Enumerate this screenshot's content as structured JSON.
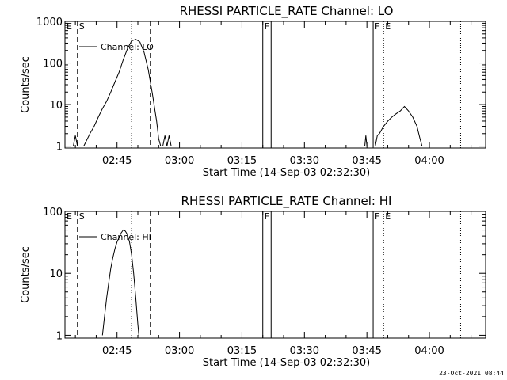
{
  "footer": {
    "date": "23-Oct-2021 08:44"
  },
  "chart_data": [
    {
      "type": "line",
      "title": "RHESSI PARTICLE_RATE Channel: LO",
      "xlabel": "Start Time (14-Sep-03 02:32:30)",
      "ylabel": "Counts/sec",
      "y_scale": "log",
      "ylim": [
        0.9,
        1000
      ],
      "xlim": [
        "02:32:30",
        "04:13:30"
      ],
      "x_ticks": [
        "02:45",
        "03:00",
        "03:15",
        "03:30",
        "03:45",
        "04:00"
      ],
      "y_ticks": [
        "1",
        "10",
        "100",
        "1000"
      ],
      "legend": {
        "label": "Channel: LO",
        "position": "top-left"
      },
      "markers": [
        {
          "time": "02:35:30",
          "label": "S",
          "style": "dashed"
        },
        {
          "time": "02:48:30",
          "label": "",
          "style": "dotted"
        },
        {
          "time": "02:53:00",
          "label": "",
          "style": "dashed"
        },
        {
          "time": "03:20:00",
          "label": "F",
          "style": "solid"
        },
        {
          "time": "03:22:00",
          "label": "",
          "style": "solid"
        },
        {
          "time": "03:46:30",
          "label": "F",
          "style": "solid"
        },
        {
          "time": "03:49:00",
          "label": "E",
          "style": "dotted"
        },
        {
          "time": "04:07:30",
          "label": "",
          "style": "dotted"
        }
      ],
      "edge_labels": {
        "left": "E"
      },
      "series": [
        {
          "name": "Channel: LO",
          "segments": [
            [
              [
                "02:34:30",
                1
              ],
              [
                "02:35:00",
                1.8
              ],
              [
                "02:35:30",
                1
              ]
            ],
            [
              [
                "02:37:00",
                1
              ],
              [
                "02:38:30",
                2
              ],
              [
                "02:39:30",
                3
              ],
              [
                "02:40:30",
                5
              ],
              [
                "02:41:30",
                8
              ],
              [
                "02:42:30",
                12
              ],
              [
                "02:43:30",
                20
              ],
              [
                "02:44:30",
                35
              ],
              [
                "02:45:30",
                60
              ],
              [
                "02:46:30",
                120
              ],
              [
                "02:47:30",
                220
              ],
              [
                "02:48:30",
                340
              ],
              [
                "02:49:30",
                370
              ],
              [
                "02:50:30",
                320
              ],
              [
                "02:51:30",
                180
              ],
              [
                "02:52:30",
                70
              ],
              [
                "02:53:30",
                18
              ],
              [
                "02:54:30",
                4
              ],
              [
                "02:55:00",
                1.5
              ],
              [
                "02:55:30",
                1
              ]
            ],
            [
              [
                "02:56:00",
                1
              ],
              [
                "02:56:30",
                1.8
              ],
              [
                "02:57:00",
                1
              ],
              [
                "02:57:30",
                1.8
              ],
              [
                "02:58:00",
                1
              ]
            ],
            [
              [
                "03:44:30",
                1
              ],
              [
                "03:44:45",
                1.8
              ],
              [
                "03:45:00",
                1
              ]
            ],
            [
              [
                "03:47:00",
                1
              ],
              [
                "03:47:30",
                1.8
              ],
              [
                "03:48:00",
                2
              ],
              [
                "03:49:00",
                3
              ],
              [
                "03:50:00",
                4
              ],
              [
                "03:51:00",
                5
              ],
              [
                "03:52:00",
                6
              ],
              [
                "03:53:00",
                7
              ],
              [
                "03:54:00",
                9
              ],
              [
                "03:55:00",
                7
              ],
              [
                "03:56:00",
                5
              ],
              [
                "03:57:00",
                3
              ],
              [
                "03:57:45",
                1.5
              ],
              [
                "03:58:15",
                1
              ]
            ]
          ]
        }
      ]
    },
    {
      "type": "line",
      "title": "RHESSI PARTICLE_RATE Channel: HI",
      "xlabel": "Start Time (14-Sep-03 02:32:30)",
      "ylabel": "Counts/sec",
      "y_scale": "log",
      "ylim": [
        0.9,
        100
      ],
      "xlim": [
        "02:32:30",
        "04:13:30"
      ],
      "x_ticks": [
        "02:45",
        "03:00",
        "03:15",
        "03:30",
        "03:45",
        "04:00"
      ],
      "y_ticks": [
        "1",
        "10",
        "100"
      ],
      "legend": {
        "label": "Channel: HI",
        "position": "top-left"
      },
      "markers": [
        {
          "time": "02:35:30",
          "label": "S",
          "style": "dashed"
        },
        {
          "time": "02:48:30",
          "label": "",
          "style": "dotted"
        },
        {
          "time": "02:53:00",
          "label": "",
          "style": "dashed"
        },
        {
          "time": "03:20:00",
          "label": "F",
          "style": "solid"
        },
        {
          "time": "03:22:00",
          "label": "",
          "style": "solid"
        },
        {
          "time": "03:46:30",
          "label": "F",
          "style": "solid"
        },
        {
          "time": "03:49:00",
          "label": "E",
          "style": "dotted"
        },
        {
          "time": "04:07:30",
          "label": "",
          "style": "dotted"
        }
      ],
      "edge_labels": {
        "left": "E"
      },
      "series": [
        {
          "name": "Channel: HI",
          "segments": [
            [
              [
                "02:41:30",
                1
              ],
              [
                "02:42:00",
                2
              ],
              [
                "02:42:30",
                4
              ],
              [
                "02:43:00",
                7
              ],
              [
                "02:43:30",
                12
              ],
              [
                "02:44:00",
                18
              ],
              [
                "02:44:30",
                25
              ],
              [
                "02:45:00",
                32
              ],
              [
                "02:45:30",
                38
              ],
              [
                "02:46:00",
                45
              ],
              [
                "02:46:30",
                50
              ],
              [
                "02:47:00",
                48
              ],
              [
                "02:47:30",
                42
              ],
              [
                "02:48:00",
                32
              ],
              [
                "02:48:30",
                20
              ],
              [
                "02:49:00",
                10
              ],
              [
                "02:49:30",
                4
              ],
              [
                "02:50:00",
                1.5
              ],
              [
                "02:50:15",
                1
              ]
            ]
          ]
        }
      ]
    }
  ]
}
